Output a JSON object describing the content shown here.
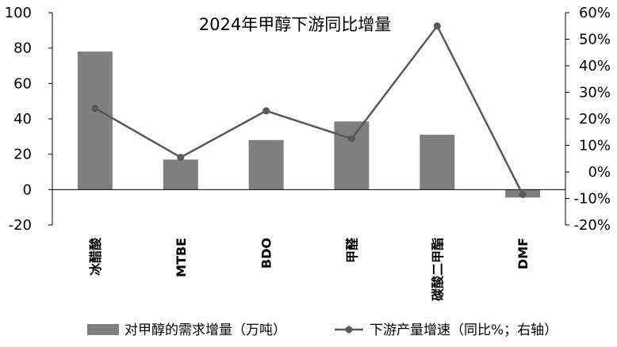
{
  "chart_data": {
    "type": "bar",
    "title": "2024年甲醇下游同比增量",
    "categories": [
      "冰醋酸",
      "MTBE",
      "BDO",
      "甲醛",
      "碳酸二甲酯",
      "DMF"
    ],
    "series": [
      {
        "name": "对甲醇的需求增量（万吨）",
        "type": "bar",
        "axis": "left",
        "values": [
          78,
          17,
          28,
          38.5,
          31,
          -4.5
        ]
      },
      {
        "name": "下游产量增速（同比%；右轴）",
        "type": "line",
        "axis": "right",
        "values": [
          24,
          5.5,
          23,
          12.5,
          55,
          -8.5
        ]
      }
    ],
    "left_axis": {
      "min": -20,
      "max": 100,
      "ticks": [
        "100",
        "80",
        "60",
        "40",
        "20",
        "0",
        "-20"
      ]
    },
    "right_axis": {
      "min": -20,
      "max": 60,
      "ticks": [
        "60%",
        "50%",
        "40%",
        "30%",
        "20%",
        "10%",
        "0%",
        "-10%",
        "-20%"
      ]
    },
    "grid": false,
    "legend_position": "bottom",
    "colors": {
      "bar": "#7f7f7f",
      "line": "#595959",
      "axis": "#000000"
    }
  }
}
